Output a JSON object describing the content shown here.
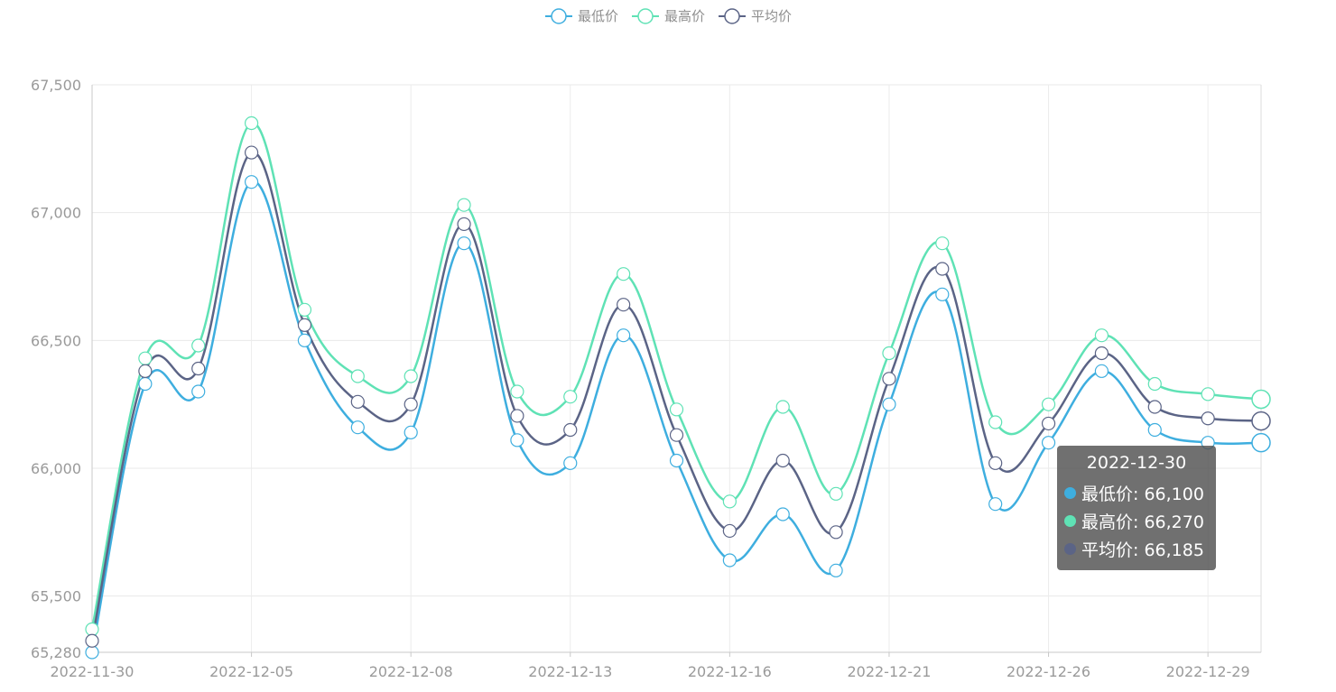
{
  "legend": [
    {
      "label": "最低价",
      "color": "#3eaedf"
    },
    {
      "label": "最高价",
      "color": "#5fe2b5"
    },
    {
      "label": "平均价",
      "color": "#5b6486"
    }
  ],
  "tooltip": {
    "title": "2022-12-30",
    "rows": [
      {
        "label": "最低价: 66,100",
        "color": "#3eaedf"
      },
      {
        "label": "最高价: 66,270",
        "color": "#5fe2b5"
      },
      {
        "label": "平均价: 66,185",
        "color": "#5b6486"
      }
    ]
  },
  "chart_data": {
    "type": "line",
    "x": [
      "2022-11-30",
      "2022-12-01",
      "2022-12-02",
      "2022-12-05",
      "2022-12-06",
      "2022-12-07",
      "2022-12-08",
      "2022-12-09",
      "2022-12-12",
      "2022-12-13",
      "2022-12-14",
      "2022-12-15",
      "2022-12-16",
      "2022-12-19",
      "2022-12-20",
      "2022-12-21",
      "2022-12-22",
      "2022-12-23",
      "2022-12-26",
      "2022-12-27",
      "2022-12-28",
      "2022-12-29",
      "2022-12-30"
    ],
    "x_tick_labels": [
      "2022-11-30",
      "2022-12-05",
      "2022-12-08",
      "2022-12-13",
      "2022-12-16",
      "2022-12-21",
      "2022-12-26",
      "2022-12-29"
    ],
    "y_tick_labels": [
      "67,500",
      "67,000",
      "66,500",
      "66,000",
      "65,500",
      "65,280"
    ],
    "ylim": [
      65280,
      67500
    ],
    "series": [
      {
        "name": "最低价",
        "color": "#3eaedf",
        "values": [
          65280,
          66330,
          66300,
          67120,
          66500,
          66160,
          66140,
          66880,
          66110,
          66020,
          66520,
          66030,
          65640,
          65820,
          65600,
          66250,
          66680,
          65860,
          66100,
          66380,
          66150,
          66100,
          66100
        ]
      },
      {
        "name": "最高价",
        "color": "#5fe2b5",
        "values": [
          65370,
          66430,
          66480,
          67350,
          66620,
          66360,
          66360,
          67030,
          66300,
          66280,
          66760,
          66230,
          65870,
          66240,
          65900,
          66450,
          66880,
          66180,
          66250,
          66520,
          66330,
          66290,
          66270
        ]
      },
      {
        "name": "平均价",
        "color": "#5b6486",
        "values": [
          65325,
          66380,
          66390,
          67235,
          66560,
          66260,
          66250,
          66955,
          66205,
          66150,
          66640,
          66130,
          65755,
          66030,
          65750,
          66350,
          66780,
          66020,
          66175,
          66450,
          66240,
          66195,
          66185
        ]
      }
    ],
    "grid": true,
    "legend_position": "top-center"
  }
}
